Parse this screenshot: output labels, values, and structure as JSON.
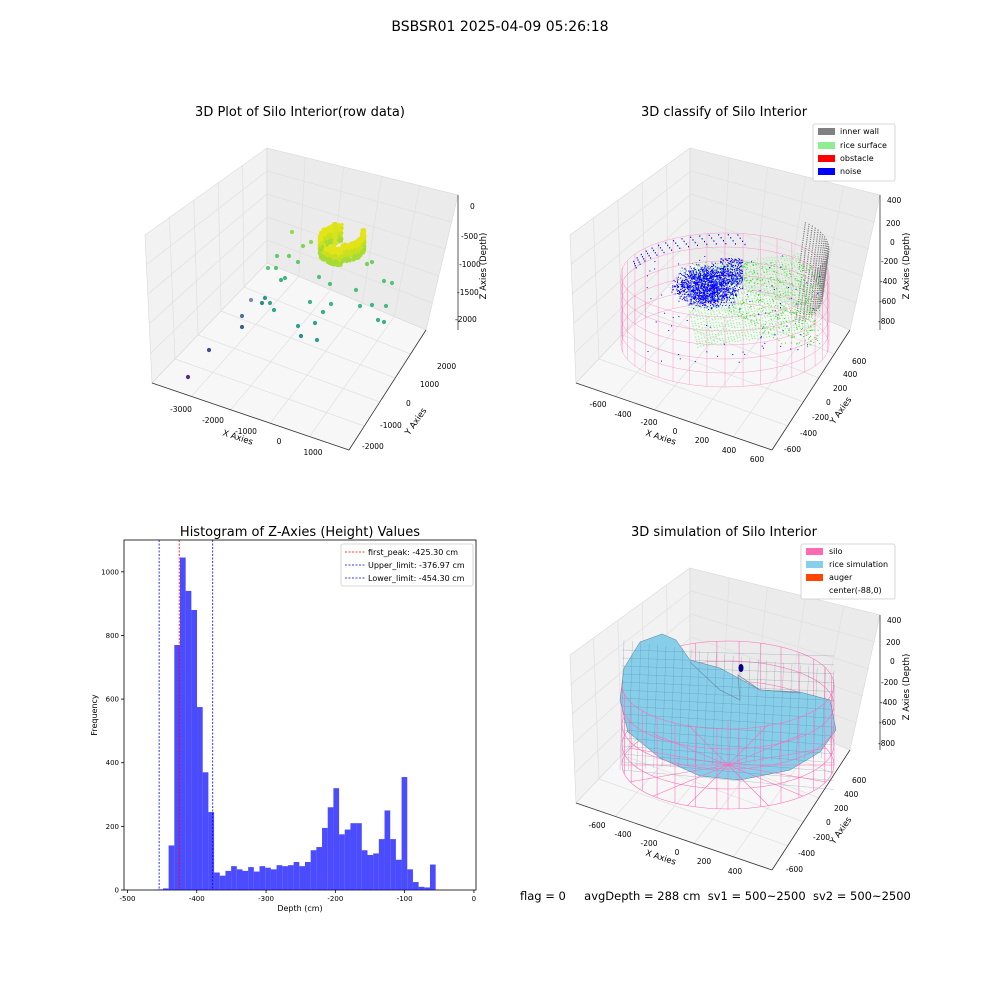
{
  "figure_title": "BSBSR01 2025-04-09 05:26:18",
  "status": {
    "flag": "flag = 0",
    "avg_depth": "avgDepth = 288 cm",
    "sv1": "sv1 = 500~2500",
    "sv2": "sv2 = 500~2500"
  },
  "colors": {
    "histogram_bar": "#0000ff",
    "first_peak": "#ff0000",
    "limit_lines": "#0000ff",
    "inner_wall": "#808080",
    "rice_surface": "#90ee90",
    "obstacle": "#ff0000",
    "noise": "#0000ff",
    "silo": "#ff69b4",
    "rice_simulation": "#87ceeb",
    "auger": "#ff4500"
  },
  "chart_data": [
    {
      "type": "scatter",
      "projection": "3d",
      "title": "3D Plot of Silo Interior(row data)",
      "xlabel": "X Axies",
      "ylabel": "Y Axies",
      "zlabel": "Z Axies (Depth)",
      "x_ticks": [
        "-3000",
        "-2000",
        "-1000",
        "0",
        "1000"
      ],
      "y_ticks": [
        "-2000",
        "-1000",
        "0",
        "1000",
        "2000"
      ],
      "z_ticks": [
        "-2000",
        "-1500",
        "-1000",
        "-500",
        "0"
      ],
      "colormap": "viridis"
    },
    {
      "type": "scatter",
      "projection": "3d",
      "title": "3D classify of Silo Interior",
      "xlabel": "X Axies",
      "ylabel": "Y Axies",
      "zlabel": "Z Axies (Depth)",
      "x_ticks": [
        "-600",
        "-400",
        "-200",
        "0",
        "200",
        "400",
        "600"
      ],
      "y_ticks": [
        "-600",
        "-400",
        "-200",
        "0",
        "200",
        "400",
        "600"
      ],
      "z_ticks": [
        "-800",
        "-600",
        "-400",
        "-200",
        "0",
        "200",
        "400"
      ],
      "legend": [
        "inner wall",
        "rice surface",
        "obstacle",
        "noise"
      ],
      "legend_position": "top-right"
    },
    {
      "type": "bar",
      "title": "Histogram of Z-Axies (Height) Values",
      "xlabel": "Depth (cm)",
      "ylabel": "Frequency",
      "xlim": [
        -505,
        3
      ],
      "ylim": [
        0,
        1100
      ],
      "x_ticks": [
        -500,
        -400,
        -300,
        -200,
        -100,
        0
      ],
      "y_ticks": [
        0,
        200,
        400,
        600,
        800,
        1000
      ],
      "bin_start": -457,
      "bin_width": 8.2,
      "values": [
        2,
        5,
        140,
        770,
        1045,
        940,
        880,
        575,
        370,
        245,
        55,
        45,
        60,
        75,
        65,
        60,
        72,
        58,
        75,
        70,
        65,
        78,
        75,
        78,
        88,
        75,
        88,
        125,
        135,
        195,
        260,
        320,
        175,
        190,
        210,
        210,
        125,
        110,
        115,
        160,
        250,
        160,
        95,
        355,
        65,
        25,
        10,
        8,
        80
      ],
      "vlines": [
        {
          "label": "first_peak: -425.30 cm",
          "x": -425.3,
          "color": "#ff0000"
        },
        {
          "label": "Upper_limit: -376.97 cm",
          "x": -376.97,
          "color": "#0000ff"
        },
        {
          "label": "Lower_limit: -454.30 cm",
          "x": -454.3,
          "color": "#0000ff"
        }
      ],
      "legend_position": "top-right"
    },
    {
      "type": "surface",
      "projection": "3d",
      "title": "3D simulation of Silo Interior",
      "xlabel": "X Axies",
      "ylabel": "Y Axies",
      "zlabel": "Z Axies (Depth)",
      "x_ticks": [
        "-600",
        "-400",
        "-200",
        "0",
        "200",
        "400"
      ],
      "y_ticks": [
        "-600",
        "-400",
        "-200",
        "0",
        "200",
        "400",
        "600"
      ],
      "z_ticks": [
        "-800",
        "-600",
        "-400",
        "-200",
        "0",
        "200",
        "400"
      ],
      "legend": [
        "silo",
        "rice simulation",
        "auger",
        "center(-88,0)"
      ],
      "legend_position": "top-right"
    }
  ]
}
